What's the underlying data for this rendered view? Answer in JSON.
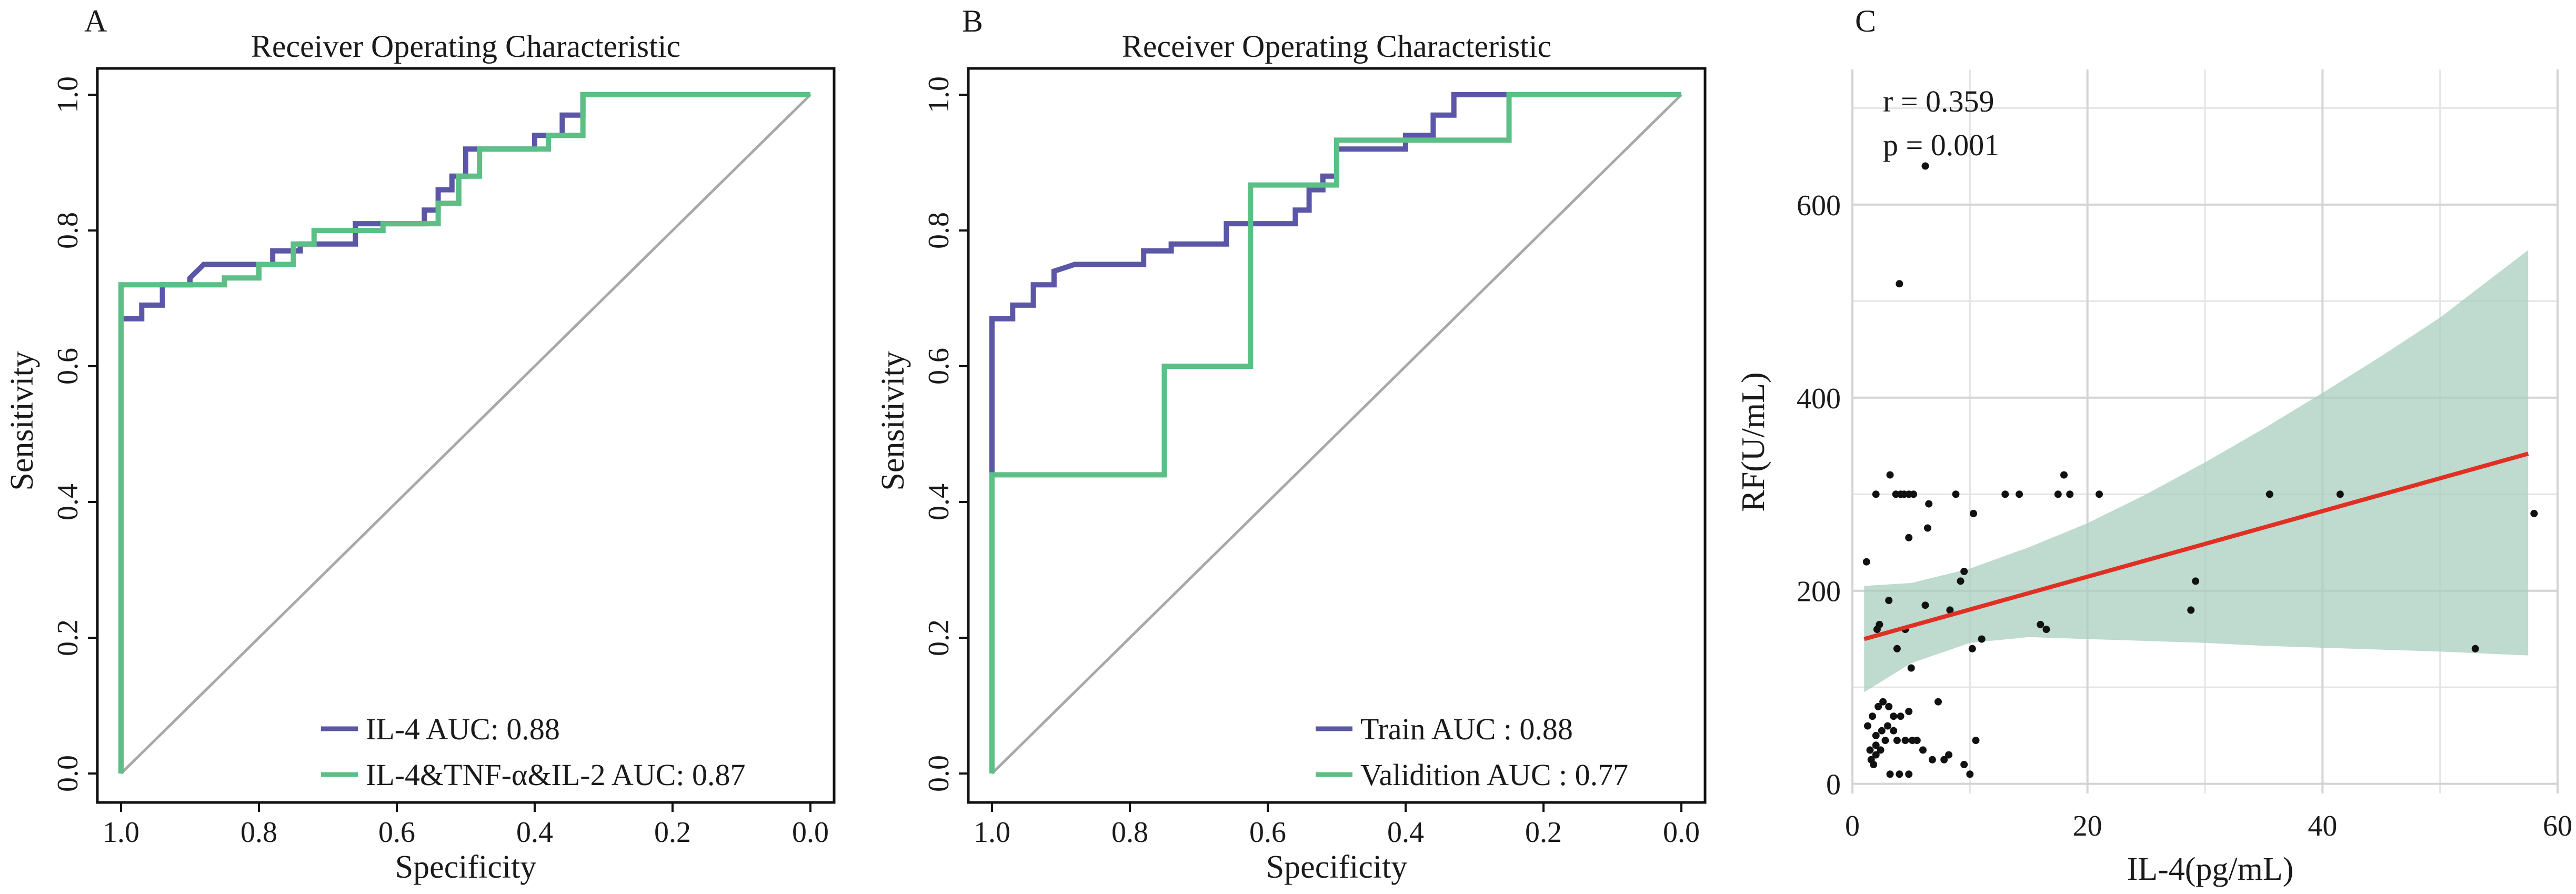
{
  "colors": {
    "purple": "#5b57a6",
    "green": "#5cbf86",
    "red": "#e03024",
    "band": "#a9cdbf",
    "diag": "#a8a8a8",
    "grid": "#d4d4d4",
    "point": "#111111"
  },
  "chart_data": [
    {
      "panel": "A",
      "type": "line",
      "title": "Receiver Operating Characteristic",
      "xlabel": "Specificity",
      "ylabel": "Sensitivity",
      "xlim": [
        1.0,
        0.0
      ],
      "ylim": [
        0.0,
        1.0
      ],
      "xticks": [
        "1.0",
        "0.8",
        "0.6",
        "0.4",
        "0.2",
        "0.0"
      ],
      "yticks": [
        "0.0",
        "0.2",
        "0.4",
        "0.6",
        "0.8",
        "1.0"
      ],
      "legend_position": "bottom-right",
      "series": [
        {
          "name": "IL-4 AUC: 0.88",
          "color": "#5b57a6",
          "points": [
            [
              1.0,
              0.0
            ],
            [
              1.0,
              0.67
            ],
            [
              0.97,
              0.67
            ],
            [
              0.97,
              0.69
            ],
            [
              0.94,
              0.69
            ],
            [
              0.94,
              0.72
            ],
            [
              0.9,
              0.72
            ],
            [
              0.9,
              0.73
            ],
            [
              0.88,
              0.75
            ],
            [
              0.78,
              0.75
            ],
            [
              0.78,
              0.77
            ],
            [
              0.74,
              0.77
            ],
            [
              0.74,
              0.78
            ],
            [
              0.66,
              0.78
            ],
            [
              0.66,
              0.81
            ],
            [
              0.56,
              0.81
            ],
            [
              0.56,
              0.83
            ],
            [
              0.54,
              0.83
            ],
            [
              0.54,
              0.86
            ],
            [
              0.52,
              0.86
            ],
            [
              0.52,
              0.88
            ],
            [
              0.5,
              0.88
            ],
            [
              0.5,
              0.92
            ],
            [
              0.4,
              0.92
            ],
            [
              0.4,
              0.94
            ],
            [
              0.36,
              0.94
            ],
            [
              0.36,
              0.97
            ],
            [
              0.33,
              0.97
            ],
            [
              0.33,
              1.0
            ],
            [
              0.0,
              1.0
            ]
          ]
        },
        {
          "name": "IL-4&TNF-α&IL-2 AUC: 0.87",
          "color": "#5cbf86",
          "points": [
            [
              1.0,
              0.0
            ],
            [
              1.0,
              0.72
            ],
            [
              0.85,
              0.72
            ],
            [
              0.85,
              0.73
            ],
            [
              0.8,
              0.73
            ],
            [
              0.8,
              0.75
            ],
            [
              0.75,
              0.75
            ],
            [
              0.75,
              0.78
            ],
            [
              0.72,
              0.78
            ],
            [
              0.72,
              0.8
            ],
            [
              0.62,
              0.8
            ],
            [
              0.62,
              0.81
            ],
            [
              0.54,
              0.81
            ],
            [
              0.54,
              0.84
            ],
            [
              0.51,
              0.84
            ],
            [
              0.51,
              0.88
            ],
            [
              0.48,
              0.88
            ],
            [
              0.48,
              0.92
            ],
            [
              0.38,
              0.92
            ],
            [
              0.38,
              0.94
            ],
            [
              0.33,
              0.94
            ],
            [
              0.33,
              1.0
            ],
            [
              0.0,
              1.0
            ]
          ]
        }
      ]
    },
    {
      "panel": "B",
      "type": "line",
      "title": "Receiver Operating Characteristic",
      "xlabel": "Specificity",
      "ylabel": "Sensitivity",
      "xlim": [
        1.0,
        0.0
      ],
      "ylim": [
        0.0,
        1.0
      ],
      "xticks": [
        "1.0",
        "0.8",
        "0.6",
        "0.4",
        "0.2",
        "0.0"
      ],
      "yticks": [
        "0.0",
        "0.2",
        "0.4",
        "0.6",
        "0.8",
        "1.0"
      ],
      "legend_position": "bottom-right",
      "series": [
        {
          "name": "Train AUC : 0.88",
          "color": "#5b57a6",
          "points": [
            [
              1.0,
              0.44
            ],
            [
              1.0,
              0.67
            ],
            [
              0.97,
              0.67
            ],
            [
              0.97,
              0.69
            ],
            [
              0.94,
              0.69
            ],
            [
              0.94,
              0.72
            ],
            [
              0.91,
              0.72
            ],
            [
              0.91,
              0.74
            ],
            [
              0.88,
              0.75
            ],
            [
              0.78,
              0.75
            ],
            [
              0.78,
              0.77
            ],
            [
              0.74,
              0.77
            ],
            [
              0.74,
              0.78
            ],
            [
              0.66,
              0.78
            ],
            [
              0.66,
              0.81
            ],
            [
              0.56,
              0.81
            ],
            [
              0.56,
              0.83
            ],
            [
              0.54,
              0.83
            ],
            [
              0.54,
              0.86
            ],
            [
              0.52,
              0.86
            ],
            [
              0.52,
              0.88
            ],
            [
              0.5,
              0.88
            ],
            [
              0.5,
              0.92
            ],
            [
              0.4,
              0.92
            ],
            [
              0.4,
              0.94
            ],
            [
              0.36,
              0.94
            ],
            [
              0.36,
              0.97
            ],
            [
              0.33,
              0.97
            ],
            [
              0.33,
              1.0
            ],
            [
              0.0,
              1.0
            ]
          ]
        },
        {
          "name": "Validition AUC : 0.77",
          "color": "#5cbf86",
          "points": [
            [
              1.0,
              0.0
            ],
            [
              1.0,
              0.44
            ],
            [
              0.75,
              0.44
            ],
            [
              0.75,
              0.6
            ],
            [
              0.625,
              0.6
            ],
            [
              0.625,
              0.867
            ],
            [
              0.5,
              0.867
            ],
            [
              0.5,
              0.933
            ],
            [
              0.25,
              0.933
            ],
            [
              0.25,
              1.0
            ],
            [
              0.0,
              1.0
            ]
          ]
        }
      ]
    },
    {
      "panel": "C",
      "type": "scatter",
      "xlabel": "IL-4(pg/mL)",
      "ylabel": "RF(U/mL)",
      "xlim": [
        0,
        60
      ],
      "ylim": [
        -10,
        740
      ],
      "xticks": [
        "0",
        "20",
        "40",
        "60"
      ],
      "yticks": [
        "0",
        "200",
        "400",
        "600"
      ],
      "grid": true,
      "annotations": [
        "r = 0.359",
        "p = 0.001"
      ],
      "fit": {
        "x": [
          1,
          57.5
        ],
        "y": [
          150,
          342
        ]
      },
      "ci_upper": [
        [
          1,
          205
        ],
        [
          5,
          208
        ],
        [
          10,
          223
        ],
        [
          15,
          245
        ],
        [
          20,
          270
        ],
        [
          25,
          300
        ],
        [
          30,
          333
        ],
        [
          35,
          368
        ],
        [
          40,
          405
        ],
        [
          45,
          443
        ],
        [
          50,
          483
        ],
        [
          57.5,
          553
        ]
      ],
      "ci_lower": [
        [
          1,
          95
        ],
        [
          5,
          125
        ],
        [
          10,
          146
        ],
        [
          15,
          152
        ],
        [
          20,
          150
        ],
        [
          25,
          148
        ],
        [
          30,
          146
        ],
        [
          35,
          143
        ],
        [
          40,
          141
        ],
        [
          45,
          139
        ],
        [
          50,
          137
        ],
        [
          57.5,
          133
        ]
      ],
      "points": [
        [
          6.2,
          640
        ],
        [
          4.0,
          518
        ],
        [
          3.2,
          320
        ],
        [
          2.0,
          300
        ],
        [
          3.7,
          300
        ],
        [
          4.1,
          300
        ],
        [
          4.4,
          300
        ],
        [
          4.8,
          300
        ],
        [
          5.2,
          300
        ],
        [
          6.5,
          290
        ],
        [
          8.8,
          300
        ],
        [
          13.0,
          300
        ],
        [
          14.2,
          300
        ],
        [
          17.5,
          300
        ],
        [
          18.0,
          320
        ],
        [
          18.5,
          300
        ],
        [
          21.0,
          300
        ],
        [
          35.5,
          300
        ],
        [
          41.5,
          300
        ],
        [
          58.0,
          280
        ],
        [
          10.3,
          280
        ],
        [
          6.4,
          265
        ],
        [
          4.8,
          255
        ],
        [
          1.2,
          230
        ],
        [
          9.5,
          220
        ],
        [
          9.2,
          210
        ],
        [
          29.2,
          210
        ],
        [
          2.3,
          165
        ],
        [
          2.1,
          160
        ],
        [
          4.5,
          160
        ],
        [
          16.0,
          165
        ],
        [
          16.5,
          160
        ],
        [
          8.3,
          180
        ],
        [
          6.2,
          185
        ],
        [
          3.1,
          190
        ],
        [
          28.8,
          180
        ],
        [
          10.2,
          140
        ],
        [
          3.8,
          140
        ],
        [
          5.0,
          120
        ],
        [
          53.0,
          140
        ],
        [
          11.0,
          150
        ],
        [
          1.3,
          60
        ],
        [
          1.7,
          70
        ],
        [
          2.2,
          80
        ],
        [
          2.6,
          85
        ],
        [
          3.1,
          80
        ],
        [
          3.5,
          70
        ],
        [
          4.1,
          70
        ],
        [
          4.8,
          75
        ],
        [
          2.0,
          50
        ],
        [
          2.5,
          55
        ],
        [
          3.0,
          60
        ],
        [
          3.5,
          55
        ],
        [
          1.5,
          35
        ],
        [
          2.0,
          40
        ],
        [
          2.8,
          45
        ],
        [
          3.8,
          45
        ],
        [
          4.5,
          45
        ],
        [
          5.1,
          45
        ],
        [
          5.5,
          45
        ],
        [
          6.0,
          35
        ],
        [
          1.6,
          25
        ],
        [
          2.0,
          30
        ],
        [
          2.4,
          35
        ],
        [
          6.8,
          25
        ],
        [
          7.3,
          85
        ],
        [
          7.8,
          25
        ],
        [
          8.2,
          30
        ],
        [
          9.5,
          20
        ],
        [
          10.0,
          10
        ],
        [
          10.5,
          45
        ],
        [
          3.2,
          10
        ],
        [
          4.0,
          10
        ],
        [
          4.8,
          10
        ],
        [
          1.8,
          20
        ]
      ]
    }
  ]
}
